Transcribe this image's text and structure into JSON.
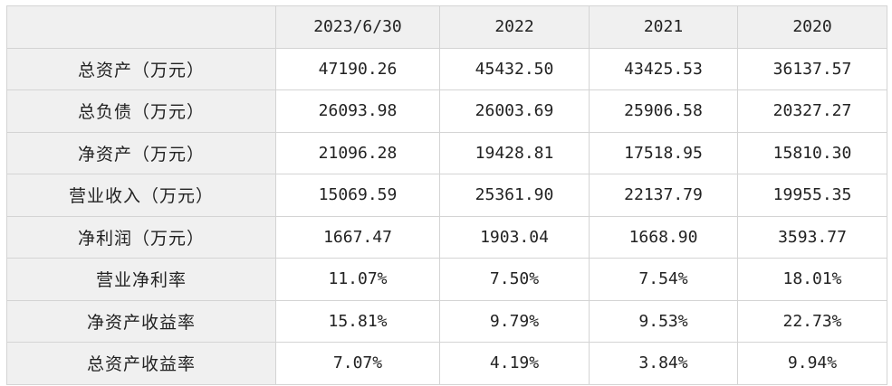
{
  "table": {
    "corner": "",
    "columns": [
      "2023/6/30",
      "2022",
      "2021",
      "2020"
    ],
    "rows": [
      {
        "label": "总资产（万元）",
        "values": [
          "47190.26",
          "45432.50",
          "43425.53",
          "36137.57"
        ]
      },
      {
        "label": "总负债（万元）",
        "values": [
          "26093.98",
          "26003.69",
          "25906.58",
          "20327.27"
        ]
      },
      {
        "label": "净资产（万元）",
        "values": [
          "21096.28",
          "19428.81",
          "17518.95",
          "15810.30"
        ]
      },
      {
        "label": "营业收入（万元）",
        "values": [
          "15069.59",
          "25361.90",
          "22137.79",
          "19955.35"
        ]
      },
      {
        "label": "净利润（万元）",
        "values": [
          "1667.47",
          "1903.04",
          "1668.90",
          "3593.77"
        ]
      },
      {
        "label": "营业净利率",
        "values": [
          "11.07%",
          "7.50%",
          "7.54%",
          "18.01%"
        ]
      },
      {
        "label": "净资产收益率",
        "values": [
          "15.81%",
          "9.79%",
          "9.53%",
          "22.73%"
        ]
      },
      {
        "label": "总资产收益率",
        "values": [
          "7.07%",
          "4.19%",
          "3.84%",
          "9.94%"
        ]
      }
    ]
  }
}
